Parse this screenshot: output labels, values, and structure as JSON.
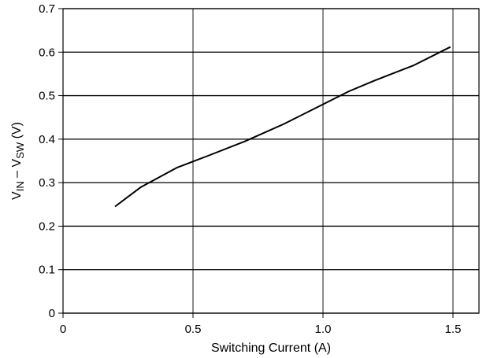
{
  "chart_data": {
    "type": "line",
    "title": "",
    "xlabel": "Switching Current (A)",
    "ylabel": {
      "parts": [
        {
          "text": "V",
          "sub": false
        },
        {
          "text": "IN",
          "sub": true
        },
        {
          "text": " – V",
          "sub": false
        },
        {
          "text": "SW",
          "sub": true
        },
        {
          "text": " (V)",
          "sub": false
        }
      ]
    },
    "xlim": [
      0,
      1.6
    ],
    "ylim": [
      0,
      0.7
    ],
    "xticks": [
      0,
      0.5,
      1.0,
      1.5
    ],
    "xtick_labels": [
      "0",
      "0.5",
      "1.0",
      "1.5"
    ],
    "yticks": [
      0,
      0.1,
      0.2,
      0.3,
      0.4,
      0.5,
      0.6,
      0.7
    ],
    "ytick_labels": [
      "0",
      "0.1",
      "0.2",
      "0.3",
      "0.4",
      "0.5",
      "0.6",
      "0.7"
    ],
    "grid": true,
    "series": [
      {
        "x": [
          0.2,
          0.3,
          0.44,
          0.55,
          0.7,
          0.85,
          1.0,
          1.1,
          1.2,
          1.35,
          1.49
        ],
        "y": [
          0.245,
          0.29,
          0.335,
          0.36,
          0.395,
          0.435,
          0.48,
          0.51,
          0.535,
          0.57,
          0.612
        ]
      }
    ]
  }
}
